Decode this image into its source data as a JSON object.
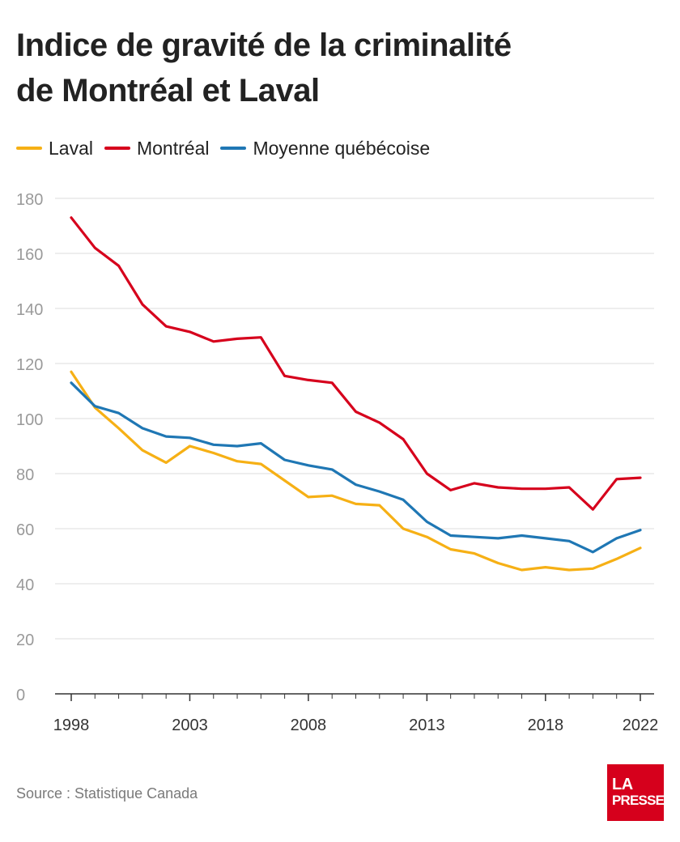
{
  "title_line1": "Indice de gravité de la criminalité",
  "title_line2": "de Montréal et Laval",
  "source": "Source : Statistique Canada",
  "logo": {
    "line1": "LA",
    "line2": "PRESSE"
  },
  "chart_data": {
    "type": "line",
    "x": [
      1998,
      1999,
      2000,
      2001,
      2002,
      2003,
      2004,
      2005,
      2006,
      2007,
      2008,
      2009,
      2010,
      2011,
      2012,
      2013,
      2014,
      2015,
      2016,
      2017,
      2018,
      2019,
      2020,
      2021,
      2022
    ],
    "xticks": [
      "1998",
      "2003",
      "2008",
      "2013",
      "2018",
      "2022"
    ],
    "yticks": [
      "0",
      "20",
      "40",
      "60",
      "80",
      "100",
      "120",
      "140",
      "160",
      "180"
    ],
    "ylim": [
      0,
      180
    ],
    "grid": true,
    "legend_position": "top-left",
    "series": [
      {
        "name": "Laval",
        "color": "#f6b015",
        "values": [
          117,
          104,
          96.5,
          88.5,
          84,
          90,
          87.5,
          84.5,
          83.5,
          77.5,
          71.5,
          72,
          69,
          68.5,
          60,
          57,
          52.5,
          51,
          47.5,
          45,
          46,
          45,
          45.5,
          49,
          53
        ]
      },
      {
        "name": "Montréal",
        "color": "#d6001c",
        "values": [
          173,
          162,
          155.5,
          141.5,
          133.5,
          131.5,
          128,
          129,
          129.5,
          115.5,
          114,
          113,
          102.5,
          98.5,
          92.5,
          80,
          74,
          76.5,
          75,
          74.5,
          74.5,
          75,
          67,
          78,
          78.5
        ]
      },
      {
        "name": "Moyenne québécoise",
        "color": "#1f77b4",
        "values": [
          113,
          104.5,
          102,
          96.5,
          93.5,
          93,
          90.5,
          90,
          91,
          85,
          83,
          81.5,
          76,
          73.5,
          70.5,
          62.5,
          57.5,
          57,
          56.5,
          57.5,
          56.5,
          55.5,
          51.5,
          56.5,
          59.5
        ]
      }
    ]
  }
}
